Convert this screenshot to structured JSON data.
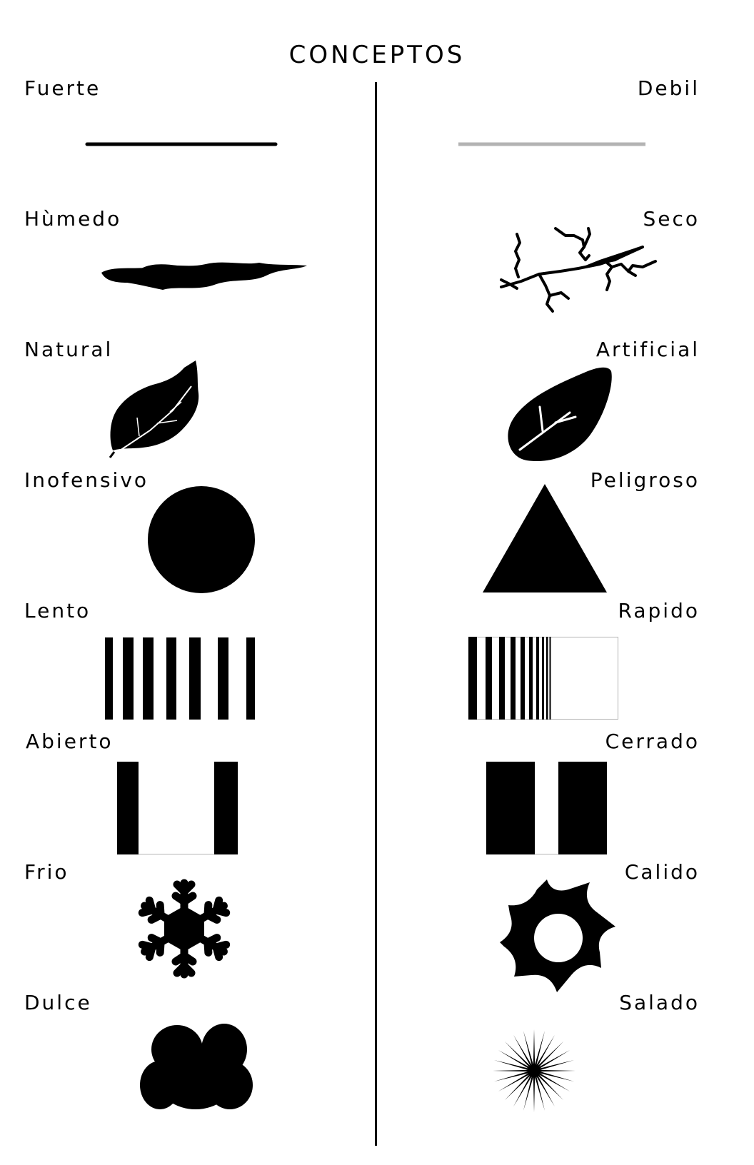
{
  "title": "CONCEPTOS",
  "pairs": [
    {
      "left": "Fuerte",
      "right": "Debil"
    },
    {
      "left": "Hùmedo",
      "right": "Seco"
    },
    {
      "left": "Natural",
      "right": "Artificial"
    },
    {
      "left": "Inofensivo",
      "right": "Peligroso"
    },
    {
      "left": "Lento",
      "right": "Rapido"
    },
    {
      "left": "Abierto",
      "right": "Cerrado"
    },
    {
      "left": "Frio",
      "right": "Calido"
    },
    {
      "left": "Dulce",
      "right": "Salado"
    }
  ],
  "colors": {
    "ink": "#000000",
    "light_line": "#b3b3b3",
    "paper": "#ffffff"
  },
  "icons": {
    "fuerte": "thick-dark-line-icon",
    "debil": "thin-gray-line-icon",
    "humedo": "wet-blob-icon",
    "seco": "dry-cracks-icon",
    "natural": "natural-leaf-icon",
    "artificial": "artificial-leaf-icon",
    "inofensivo": "circle-icon",
    "peligroso": "triangle-icon",
    "lento": "even-stripes-icon",
    "rapido": "accelerating-stripes-icon",
    "abierto": "open-bars-icon",
    "cerrado": "closed-bars-icon",
    "frio": "snowflake-icon",
    "calido": "sun-icon",
    "dulce": "cloud-icon",
    "salado": "starburst-icon"
  }
}
